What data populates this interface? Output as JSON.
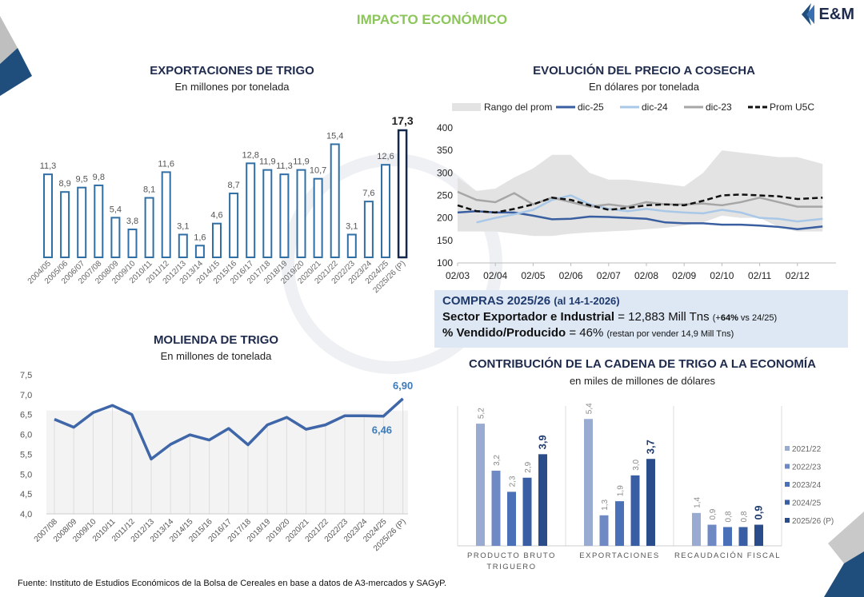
{
  "header": {
    "title": "IMPACTO ECONÓMICO",
    "logo_text": "E&M"
  },
  "colors": {
    "accent_green": "#8cc65a",
    "navy": "#1f2b4d",
    "bar_outline": "#2f6fa5",
    "highlight_bar": "#13294b"
  },
  "chart_data": [
    {
      "type": "bar",
      "title": "EXPORTACIONES DE TRIGO",
      "subtitle": "En millones por tonelada",
      "categories": [
        "2004/05",
        "2005/06",
        "2006/07",
        "2007/08",
        "2008/09",
        "2009/10",
        "2010/11",
        "2011/12",
        "2012/13",
        "2013/14",
        "2014/15",
        "2015/16",
        "2016/17",
        "2017/18",
        "2018/19",
        "2019/20",
        "2020/21",
        "2021/22",
        "2022/23",
        "2023/24",
        "2024/25",
        "2025/26 (P)"
      ],
      "values": [
        11.3,
        8.9,
        9.5,
        9.8,
        5.4,
        3.8,
        8.1,
        11.6,
        3.1,
        1.6,
        4.6,
        8.7,
        12.8,
        11.9,
        11.3,
        11.9,
        10.7,
        15.4,
        3.1,
        7.6,
        12.6,
        17.3
      ],
      "labels": [
        "11,3",
        "8,9",
        "9,5",
        "9,8",
        "5,4",
        "3,8",
        "8,1",
        "11,6",
        "3,1",
        "1,6",
        "4,6",
        "8,7",
        "12,8",
        "11,9",
        "11,3",
        "11,9",
        "10,7",
        "15,4",
        "3,1",
        "7,6",
        "12,6",
        "17,3"
      ],
      "ylim": [
        0,
        17.3
      ]
    },
    {
      "type": "line",
      "title": "EVOLUCIÓN DEL PRECIO A COSECHA",
      "subtitle": "En dólares por tonelada",
      "legend_position": "top",
      "yticks": [
        "400",
        "350",
        "300",
        "250",
        "200",
        "150",
        "100"
      ],
      "ylim": [
        100,
        400
      ],
      "xticks": [
        "02/03",
        "02/04",
        "02/05",
        "02/06",
        "02/07",
        "02/08",
        "02/09",
        "02/10",
        "02/11",
        "02/12"
      ],
      "x": [
        "02/03",
        "17/03",
        "02/04",
        "17/04",
        "02/05",
        "17/05",
        "02/06",
        "17/06",
        "02/07",
        "17/07",
        "02/08",
        "17/08",
        "02/09",
        "17/09",
        "02/10",
        "17/10",
        "02/11",
        "17/11",
        "02/12",
        "22/12"
      ],
      "range": {
        "name": "Rango del prom",
        "color": "#e3e3e3",
        "upper": [
          290,
          260,
          265,
          290,
          310,
          340,
          340,
          300,
          285,
          285,
          280,
          275,
          270,
          300,
          350,
          345,
          340,
          335,
          335,
          320
        ],
        "lower": [
          170,
          170,
          170,
          165,
          160,
          160,
          165,
          168,
          170,
          172,
          175,
          178,
          183,
          190,
          205,
          200,
          200,
          180,
          170,
          170
        ]
      },
      "series": [
        {
          "name": "dic-25",
          "color": "#3a5fa0",
          "dash": false,
          "values": [
            212,
            215,
            212,
            212,
            205,
            197,
            198,
            203,
            202,
            200,
            198,
            190,
            188,
            188,
            185,
            185,
            183,
            180,
            175,
            181
          ]
        },
        {
          "name": "dic-24",
          "color": "#a9c8e8",
          "dash": false,
          "values": [
            null,
            190,
            200,
            208,
            218,
            240,
            250,
            230,
            220,
            215,
            220,
            215,
            212,
            210,
            218,
            212,
            200,
            198,
            192,
            198
          ]
        },
        {
          "name": "dic-23",
          "color": "#a6a6a6",
          "dash": false,
          "values": [
            258,
            240,
            235,
            255,
            230,
            245,
            235,
            225,
            230,
            225,
            235,
            230,
            230,
            232,
            228,
            235,
            245,
            235,
            225,
            225
          ]
        },
        {
          "name": "Prom U5C",
          "color": "#111111",
          "dash": true,
          "values": [
            228,
            215,
            212,
            220,
            230,
            245,
            240,
            228,
            218,
            222,
            228,
            230,
            228,
            238,
            250,
            252,
            250,
            248,
            242,
            245
          ]
        }
      ]
    },
    {
      "type": "line",
      "title": "MOLIENDA DE TRIGO",
      "subtitle": "En millones de tonelada",
      "yticks": [
        "7,5",
        "7,0",
        "6,5",
        "6,0",
        "5,5",
        "5,0",
        "4,5",
        "4,0"
      ],
      "ylim": [
        4.0,
        7.5
      ],
      "categories": [
        "2007/08",
        "2008/09",
        "2009/10",
        "2010/11",
        "2011/12",
        "2012/13",
        "2013/14",
        "2014/15",
        "2015/16",
        "2016/17",
        "2017/18",
        "2018/19",
        "2019/20",
        "2020/21",
        "2021/22",
        "2022/23",
        "2023/24",
        "2024/25",
        "2025/26 (P)"
      ],
      "values": [
        6.38,
        6.18,
        6.55,
        6.73,
        6.5,
        5.38,
        5.75,
        5.99,
        5.86,
        6.15,
        5.74,
        6.24,
        6.43,
        6.13,
        6.24,
        6.47,
        6.47,
        6.46,
        6.9
      ],
      "color": "#3f66a8",
      "annotations": [
        {
          "category": "2024/25",
          "label": "6,46"
        },
        {
          "category": "2025/26 (P)",
          "label": "6,90"
        }
      ]
    },
    {
      "type": "bar",
      "title": "CONTRIBUCIÓN DE LA CADENA DE TRIGO A LA ECONOMÍA",
      "subtitle": "en miles de millones de dólares",
      "legend_position": "right",
      "categories": [
        "PRODUCTO BRUTO TRIGUERO",
        "EXPORTACIONES",
        "RECAUDACIÓN FISCAL"
      ],
      "series": [
        {
          "name": "2021/22",
          "color": "#9aabd2",
          "values": [
            5.2,
            5.4,
            1.4
          ],
          "labels": [
            "5,2",
            "5,4",
            "1,4"
          ]
        },
        {
          "name": "2022/23",
          "color": "#6f89c4",
          "values": [
            3.2,
            1.3,
            0.9
          ],
          "labels": [
            "3,2",
            "1,3",
            "0,9"
          ]
        },
        {
          "name": "2023/24",
          "color": "#4a70b8",
          "values": [
            2.3,
            1.9,
            0.8
          ],
          "labels": [
            "2,3",
            "1,9",
            "0,8"
          ]
        },
        {
          "name": "2024/25",
          "color": "#3a5ea4",
          "values": [
            2.9,
            3.0,
            0.8
          ],
          "labels": [
            "2,9",
            "3,0",
            "0,8"
          ]
        },
        {
          "name": "2025/26 (P)",
          "color": "#2b4c8a",
          "values": [
            3.9,
            3.7,
            0.9
          ],
          "labels": [
            "3,9",
            "3,7",
            "0,9"
          ]
        }
      ]
    }
  ],
  "compras": {
    "title": "COMPRAS 2025/26",
    "date": "(al  14-1-2026)",
    "sector_label": "Sector Exportador e Industrial",
    "sector_value": " =  12,883 Mill Tns ",
    "sector_change_pre": "(+",
    "sector_change_pct": "64%",
    "sector_change_post": " vs 24/25)",
    "vendido_label": "% Vendido/Producido",
    "vendido_value": " = 46% ",
    "vendido_note": "(restan por vender 14,9 Mill Tns)"
  },
  "footer": {
    "source": "Fuente: Instituto de Estudios Económicos de la Bolsa de Cereales en base a datos de A3-mercados y SAGyP."
  }
}
